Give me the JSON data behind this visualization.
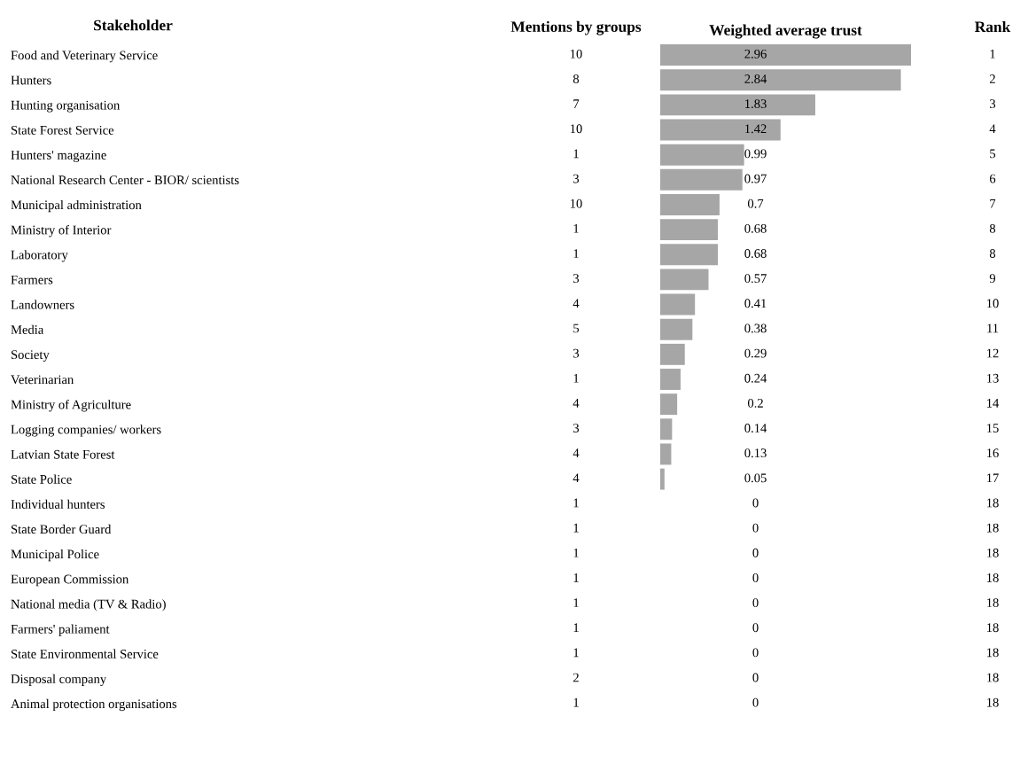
{
  "chart_data": [
    {
      "type": "bar",
      "orientation": "horizontal",
      "title": "Weighted average trust",
      "ylabel": "Stakeholder",
      "tick_labels": "y",
      "categories": [
        "Food and Veterinary Service",
        "Hunters",
        "Hunting organisation",
        "State Forest Service",
        "Hunters' magazine",
        "National Research Center - BIOR/ scientists",
        "Municipal administration",
        "Ministry of Interior",
        "Laboratory",
        "Farmers",
        "Landowners",
        "Media",
        "Society",
        "Veterinarian",
        "Ministry of Agriculture",
        "Logging companies/ workers",
        "Latvian State Forest",
        "State Police",
        "Individual hunters",
        "State Border Guard",
        "Municipal Police",
        "European Commission",
        "National media (TV & Radio)",
        "Farmers' paliament",
        "State Environmental Service",
        "Disposal company",
        "Animal protection organisations"
      ],
      "values": [
        2.96,
        2.84,
        1.83,
        1.42,
        0.99,
        0.97,
        0.7,
        0.68,
        0.68,
        0.57,
        0.41,
        0.38,
        0.29,
        0.24,
        0.2,
        0.14,
        0.13,
        0.05,
        0,
        0,
        0,
        0,
        0,
        0,
        0,
        0,
        0
      ],
      "color": "#a6a6a6",
      "data_labels": true
    },
    {
      "type": "heatmap",
      "categories": [
        "Mentions by groups"
      ],
      "tick_labels": "x",
      "data_labels": true,
      "y_categories": [
        null,
        null,
        null,
        null,
        null,
        null,
        null,
        null,
        null,
        null,
        null,
        null,
        null,
        null,
        null,
        null,
        null,
        null,
        null,
        null,
        null,
        null,
        null,
        null,
        null,
        null,
        null
      ],
      "cells": [
        [
          10
        ],
        [
          8
        ],
        [
          7
        ],
        [
          10
        ],
        [
          1
        ],
        [
          3
        ],
        [
          10
        ],
        [
          1
        ],
        [
          1
        ],
        [
          3
        ],
        [
          4
        ],
        [
          5
        ],
        [
          3
        ],
        [
          1
        ],
        [
          4
        ],
        [
          3
        ],
        [
          4
        ],
        [
          4
        ],
        [
          1
        ],
        [
          1
        ],
        [
          1
        ],
        [
          1
        ],
        [
          1
        ],
        [
          1
        ],
        [
          1
        ],
        [
          2
        ],
        [
          1
        ]
      ]
    },
    {
      "type": "heatmap",
      "categories": [
        "Rank"
      ],
      "tick_labels": "x",
      "data_labels": true,
      "y_categories": [
        null,
        null,
        null,
        null,
        null,
        null,
        null,
        null,
        null,
        null,
        null,
        null,
        null,
        null,
        null,
        null,
        null,
        null,
        null,
        null,
        null,
        null,
        null,
        null,
        null,
        null,
        null
      ],
      "cells": [
        [
          1
        ],
        [
          2
        ],
        [
          3
        ],
        [
          4
        ],
        [
          5
        ],
        [
          6
        ],
        [
          7
        ],
        [
          8
        ],
        [
          8
        ],
        [
          9
        ],
        [
          10
        ],
        [
          11
        ],
        [
          12
        ],
        [
          13
        ],
        [
          14
        ],
        [
          15
        ],
        [
          16
        ],
        [
          17
        ],
        [
          18
        ],
        [
          18
        ],
        [
          18
        ],
        [
          18
        ],
        [
          18
        ],
        [
          18
        ],
        [
          18
        ],
        [
          18
        ],
        [
          18
        ]
      ]
    }
  ]
}
